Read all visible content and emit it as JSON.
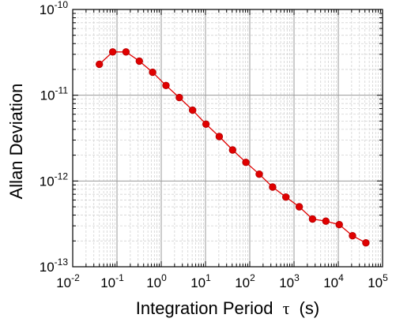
{
  "chart_data": {
    "type": "line",
    "xlabel": "Integration Period",
    "xlabel_symbol": "τ",
    "xlabel_unit": "(s)",
    "ylabel": "Allan Deviation",
    "xscale": "log",
    "yscale": "log",
    "xlim": [
      0.01,
      100000
    ],
    "ylim": [
      1e-13,
      1e-10
    ],
    "x_ticks": [
      {
        "base": "10",
        "exp": "-2"
      },
      {
        "base": "10",
        "exp": "-1"
      },
      {
        "base": "10",
        "exp": "0"
      },
      {
        "base": "10",
        "exp": "1"
      },
      {
        "base": "10",
        "exp": "2"
      },
      {
        "base": "10",
        "exp": "3"
      },
      {
        "base": "10",
        "exp": "4"
      },
      {
        "base": "10",
        "exp": "5"
      }
    ],
    "y_ticks": [
      {
        "base": "10",
        "exp": "-13"
      },
      {
        "base": "10",
        "exp": "-12"
      },
      {
        "base": "10",
        "exp": "-11"
      },
      {
        "base": "10",
        "exp": "-10"
      }
    ],
    "grid": true,
    "series": [
      {
        "color": "#e00000",
        "marker": "circle",
        "x": [
          0.04,
          0.08,
          0.16,
          0.32,
          0.64,
          1.28,
          2.56,
          5.12,
          10.24,
          20.48,
          40.96,
          81.92,
          163.84,
          327.68,
          655.36,
          1310.72,
          2621.44,
          5242.88,
          10485.76,
          20971.52,
          41943.04
        ],
        "y": [
          2.3e-11,
          3.2e-11,
          3.2e-11,
          2.5e-11,
          1.85e-11,
          1.3e-11,
          9.4e-12,
          6.7e-12,
          4.6e-12,
          3.3e-12,
          2.3e-12,
          1.65e-12,
          1.2e-12,
          8.5e-13,
          6.5e-13,
          5e-13,
          3.6e-13,
          3.4e-13,
          3.1e-13,
          2.3e-13,
          1.9e-13
        ]
      }
    ]
  }
}
